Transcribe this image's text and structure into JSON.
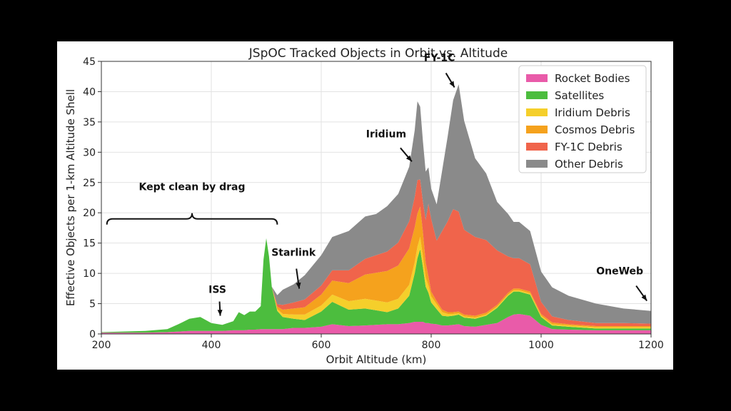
{
  "chart_data": {
    "type": "area",
    "title": "JSpOC Tracked Objects in Orbit vs. Altitude",
    "xlabel": "Orbit Altitude (km)",
    "ylabel": "Effective Objects per 1-km Altitude Shell",
    "xlim": [
      200,
      1200
    ],
    "ylim": [
      0,
      45
    ],
    "xticks": [
      200,
      400,
      600,
      800,
      1000,
      1200
    ],
    "yticks": [
      0,
      5,
      10,
      15,
      20,
      25,
      30,
      35,
      40,
      45
    ],
    "grid": true,
    "stacked": true,
    "legend_position": "top-right",
    "x": [
      200,
      240,
      280,
      320,
      340,
      360,
      380,
      400,
      420,
      440,
      450,
      460,
      470,
      480,
      490,
      495,
      500,
      505,
      510,
      520,
      530,
      550,
      570,
      600,
      620,
      650,
      680,
      700,
      720,
      740,
      760,
      770,
      775,
      780,
      785,
      790,
      795,
      800,
      810,
      820,
      830,
      840,
      850,
      860,
      880,
      900,
      920,
      940,
      950,
      960,
      980,
      1000,
      1020,
      1050,
      1100,
      1150,
      1200
    ],
    "series": [
      {
        "name": "Rocket Bodies",
        "color": "#e95ba9",
        "values": [
          0.2,
          0.2,
          0.2,
          0.3,
          0.4,
          0.5,
          0.5,
          0.5,
          0.5,
          0.6,
          0.6,
          0.6,
          0.7,
          0.7,
          0.8,
          0.8,
          0.8,
          0.8,
          0.8,
          0.8,
          0.8,
          1.0,
          1.0,
          1.2,
          1.6,
          1.3,
          1.4,
          1.5,
          1.6,
          1.6,
          1.8,
          2.0,
          2.0,
          2.0,
          2.0,
          1.8,
          1.8,
          1.7,
          1.6,
          1.4,
          1.4,
          1.5,
          1.6,
          1.3,
          1.2,
          1.5,
          1.8,
          2.8,
          3.2,
          3.3,
          3.0,
          1.5,
          0.8,
          0.7,
          0.6,
          0.6,
          0.6
        ]
      },
      {
        "name": "Satellites",
        "color": "#4cbd3e",
        "values": [
          0.1,
          0.2,
          0.3,
          0.5,
          1.2,
          2.0,
          2.3,
          1.3,
          1.0,
          1.5,
          3.0,
          2.5,
          3.0,
          3.0,
          3.8,
          11.5,
          15.0,
          12.0,
          7.0,
          3.0,
          2.0,
          1.5,
          1.3,
          2.5,
          3.7,
          2.7,
          2.8,
          2.4,
          2.0,
          2.6,
          4.5,
          8.0,
          10.5,
          12.0,
          9.0,
          6.0,
          5.0,
          3.5,
          2.5,
          1.6,
          1.5,
          1.5,
          1.6,
          1.4,
          1.3,
          1.5,
          2.5,
          3.5,
          3.8,
          3.7,
          3.5,
          1.3,
          0.6,
          0.5,
          0.3,
          0.3,
          0.3
        ]
      },
      {
        "name": "Iridium Debris",
        "color": "#f5cf2b",
        "values": [
          0,
          0,
          0,
          0,
          0,
          0,
          0,
          0,
          0,
          0,
          0,
          0,
          0,
          0,
          0,
          0,
          0,
          0,
          0,
          0.3,
          0.5,
          0.7,
          0.9,
          1.0,
          1.2,
          1.4,
          1.6,
          1.6,
          1.6,
          1.6,
          1.8,
          1.8,
          1.9,
          2.0,
          1.8,
          1.5,
          1.2,
          1.0,
          0.8,
          0.6,
          0.4,
          0.3,
          0.2,
          0.2,
          0.2,
          0.2,
          0.2,
          0.2,
          0.2,
          0.2,
          0.2,
          0.2,
          0.2,
          0.2,
          0.2,
          0.2,
          0.2
        ]
      },
      {
        "name": "Cosmos Debris",
        "color": "#f5a21d",
        "values": [
          0,
          0,
          0,
          0,
          0,
          0,
          0,
          0,
          0,
          0,
          0,
          0,
          0,
          0,
          0,
          0,
          0,
          0,
          0,
          0.4,
          0.7,
          1.0,
          1.2,
          1.8,
          2.3,
          3.0,
          4.0,
          4.6,
          5.2,
          5.5,
          6.0,
          5.8,
          5.5,
          5.0,
          4.0,
          2.5,
          1.5,
          0.8,
          0.5,
          0.4,
          0.3,
          0.3,
          0.3,
          0.3,
          0.3,
          0.3,
          0.3,
          0.3,
          0.3,
          0.3,
          0.3,
          0.3,
          0.3,
          0.2,
          0.2,
          0.2,
          0.2
        ]
      },
      {
        "name": "FY-1C Debris",
        "color": "#f0644b",
        "values": [
          0,
          0,
          0,
          0,
          0,
          0,
          0,
          0,
          0,
          0,
          0,
          0,
          0,
          0,
          0,
          0,
          0,
          0,
          0,
          0.4,
          0.8,
          1.0,
          1.3,
          1.5,
          1.7,
          2.1,
          2.6,
          2.9,
          3.2,
          3.8,
          4.5,
          5.0,
          5.5,
          4.5,
          5.0,
          7.0,
          12.0,
          12.0,
          10.0,
          13.0,
          15.0,
          17.0,
          16.5,
          14.0,
          13.0,
          12.0,
          9.0,
          6.0,
          5.0,
          5.0,
          4.5,
          2.0,
          1.0,
          0.7,
          0.5,
          0.5,
          0.4
        ]
      },
      {
        "name": "Other Debris",
        "color": "#8a8a8a",
        "values": [
          0,
          0,
          0,
          0,
          0,
          0,
          0,
          0,
          0,
          0,
          0,
          0,
          0,
          0,
          0,
          0,
          0,
          0,
          0,
          1.5,
          2.5,
          3.0,
          4.0,
          5.0,
          5.5,
          6.5,
          7.0,
          6.8,
          7.5,
          8.0,
          9.0,
          11.0,
          13.0,
          12.0,
          10.0,
          8.0,
          6.0,
          5.0,
          6.0,
          10.0,
          14.0,
          18.0,
          21.0,
          18.0,
          13.0,
          11.0,
          8.0,
          7.0,
          6.0,
          6.0,
          5.5,
          5.0,
          4.8,
          4.0,
          3.2,
          2.4,
          2.1
        ]
      }
    ],
    "annotations": [
      {
        "text": "FY-1C",
        "x": 845,
        "y": 40
      },
      {
        "text": "Iridium",
        "x": 770,
        "y": 28
      },
      {
        "text": "Starlink",
        "x": 560,
        "y": 7
      },
      {
        "text": "ISS",
        "x": 415,
        "y": 3
      },
      {
        "text": "OneWeb",
        "x": 1195,
        "y": 5
      },
      {
        "text": "Kept clean by drag",
        "x": [
          210,
          520
        ],
        "y": 19
      }
    ]
  }
}
